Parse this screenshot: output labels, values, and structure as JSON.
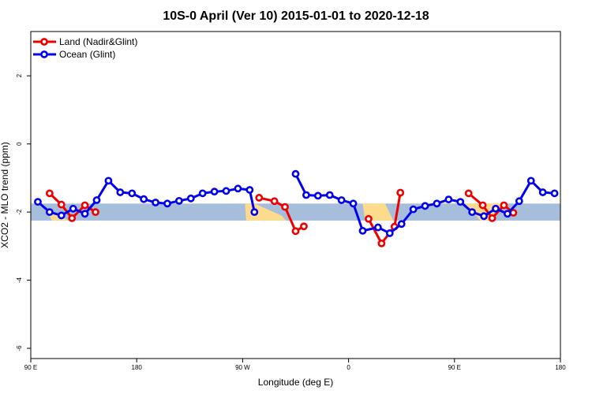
{
  "chart_data": {
    "type": "line",
    "title": "10S-0 April (Ver 10)   2015-01-01 to 2020-12-18",
    "xlabel": "Longitude (deg E)",
    "ylabel": "XCO2 - MLO trend (ppm)",
    "xlim": [
      90,
      540
    ],
    "ylim": [
      -6.3,
      3.3
    ],
    "x_ticks": [
      {
        "value": 90,
        "label": "90 E"
      },
      {
        "value": 180,
        "label": "180"
      },
      {
        "value": 270,
        "label": "90 W"
      },
      {
        "value": 360,
        "label": "0"
      },
      {
        "value": 450,
        "label": "90 E"
      },
      {
        "value": 540,
        "label": "180"
      }
    ],
    "y_ticks": [
      {
        "value": 2,
        "label": "2"
      },
      {
        "value": 0,
        "label": "0"
      },
      {
        "value": -2,
        "label": "-2"
      },
      {
        "value": -4,
        "label": "-4"
      },
      {
        "value": -6,
        "label": "-6"
      }
    ],
    "band": {
      "y_min": -2.25,
      "y_max": -1.75,
      "ocean_color": "#a6bddb",
      "land_color": "#fcdc8c"
    },
    "land_segments": [
      [
        [
          95,
          100,
          108,
          122
        ],
        [
          -1.75,
          -1.75,
          -2.25,
          -2.25
        ]
      ],
      [
        [
          272,
          280,
          303,
          307,
          273
        ],
        [
          -1.75,
          -1.75,
          -2.1,
          -2.25,
          -2.25
        ]
      ],
      [
        [
          372,
          391,
          398,
          374
        ],
        [
          -1.75,
          -1.75,
          -2.25,
          -2.25
        ]
      ],
      [
        [
          455,
          459,
          472,
          483,
          490
        ],
        [
          -1.75,
          -1.75,
          -2.25,
          -2.25,
          -1.75
        ]
      ]
    ],
    "series": [
      {
        "name": "Land (Nadir&Glint)",
        "color": "#ee0000",
        "segments": [
          [
            [
              106,
              116,
              125,
              136,
              145
            ],
            [
              -1.45,
              -1.78,
              -2.18,
              -1.8,
              -2.0
            ]
          ],
          [
            [
              284,
              297,
              306,
              315,
              322
            ],
            [
              -1.58,
              -1.68,
              -1.85,
              -2.56,
              -2.42
            ]
          ],
          [
            [
              377,
              388,
              399,
              404
            ],
            [
              -2.2,
              -2.92,
              -2.43,
              -1.43
            ]
          ],
          [
            [
              462,
              474,
              482,
              492,
              500
            ],
            [
              -1.45,
              -1.8,
              -2.18,
              -1.8,
              -2.02
            ]
          ]
        ]
      },
      {
        "name": "Ocean (Glint)",
        "color": "#0000ee",
        "segments": [
          [
            [
              96,
              106,
              116,
              126,
              136,
              146,
              156,
              166,
              176,
              186,
              196,
              206,
              216,
              226,
              236,
              246,
              256,
              266,
              276,
              280
            ],
            [
              -1.7,
              -2.0,
              -2.1,
              -1.9,
              -2.05,
              -1.65,
              -1.08,
              -1.42,
              -1.45,
              -1.62,
              -1.72,
              -1.75,
              -1.67,
              -1.6,
              -1.45,
              -1.4,
              -1.38,
              -1.31,
              -1.35,
              -2.0
            ]
          ],
          [
            [
              315,
              324,
              334,
              344,
              354,
              364,
              372,
              385,
              395,
              405,
              415,
              425,
              435,
              445,
              455,
              465,
              475,
              485,
              495,
              505,
              515,
              525,
              535
            ],
            [
              -0.88,
              -1.5,
              -1.52,
              -1.5,
              -1.65,
              -1.75,
              -2.55,
              -2.45,
              -2.62,
              -2.35,
              -1.92,
              -1.82,
              -1.75,
              -1.63,
              -1.7,
              -2.0,
              -2.12,
              -1.9,
              -2.05,
              -1.68,
              -1.08,
              -1.42,
              -1.45
            ]
          ]
        ]
      }
    ],
    "legend": {
      "position": "top-left"
    }
  }
}
